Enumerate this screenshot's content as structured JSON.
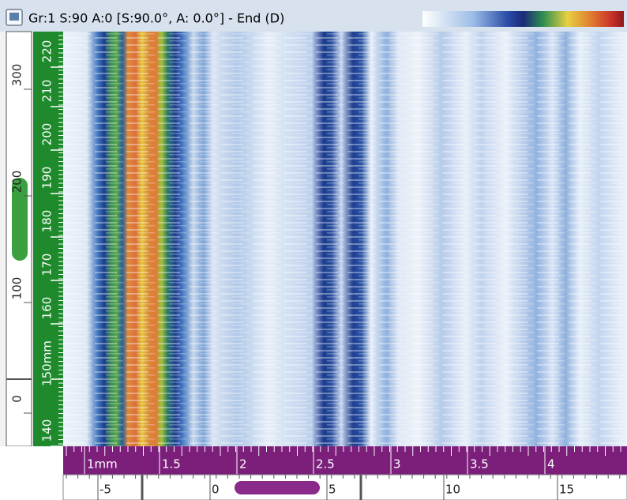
{
  "title_bar": {
    "title": "Gr:1 S:90 A:0 [S:90.0°, A: 0.0°] - End (D)"
  },
  "left_ruler": {
    "labels": [
      "300",
      "200",
      "100",
      "0"
    ]
  },
  "depth_ruler": {
    "labels": [
      "220",
      "210",
      "200",
      "190",
      "180",
      "170",
      "160",
      "150mm",
      "140"
    ]
  },
  "index_ruler": {
    "labels": [
      "1mm",
      "1.5",
      "2",
      "2.5",
      "3",
      "3.5",
      "4"
    ]
  },
  "scan_ruler": {
    "labels": [
      "-5",
      "0",
      "5",
      "10",
      "15"
    ]
  }
}
